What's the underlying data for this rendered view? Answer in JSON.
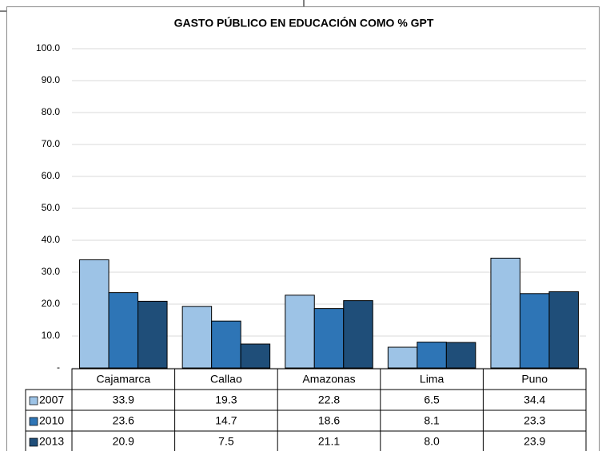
{
  "chart_data": {
    "type": "bar",
    "title": "GASTO PÚBLICO EN EDUCACIÓN COMO % GPT",
    "categories": [
      "Cajamarca",
      "Callao",
      "Amazonas",
      "Lima",
      "Puno"
    ],
    "series": [
      {
        "name": "2007",
        "color": "#9dc3e6",
        "values": [
          33.9,
          19.3,
          22.8,
          6.5,
          34.4
        ],
        "value_labels": [
          "33.9",
          "19.3",
          "22.8",
          "6.5",
          "34.4"
        ]
      },
      {
        "name": "2010",
        "color": "#2e75b6",
        "values": [
          23.6,
          14.7,
          18.6,
          8.1,
          23.3
        ],
        "value_labels": [
          "23.6",
          "14.7",
          "18.6",
          "8.1",
          "23.3"
        ]
      },
      {
        "name": "2013",
        "color": "#1f4e79",
        "values": [
          20.9,
          7.5,
          21.1,
          8.0,
          23.9
        ],
        "value_labels": [
          "20.9",
          "7.5",
          "21.1",
          "8.0",
          "23.9"
        ]
      }
    ],
    "ylim": [
      0,
      100
    ],
    "yticks": [
      {
        "value": 0,
        "label": "-"
      },
      {
        "value": 10,
        "label": "10.0"
      },
      {
        "value": 20,
        "label": "20.0"
      },
      {
        "value": 30,
        "label": "30.0"
      },
      {
        "value": 40,
        "label": "40.0"
      },
      {
        "value": 50,
        "label": "50.0"
      },
      {
        "value": 60,
        "label": "60.0"
      },
      {
        "value": 70,
        "label": "70.0"
      },
      {
        "value": 80,
        "label": "80.0"
      },
      {
        "value": 90,
        "label": "90.0"
      },
      {
        "value": 100,
        "label": "100.0"
      }
    ],
    "grid": true
  }
}
